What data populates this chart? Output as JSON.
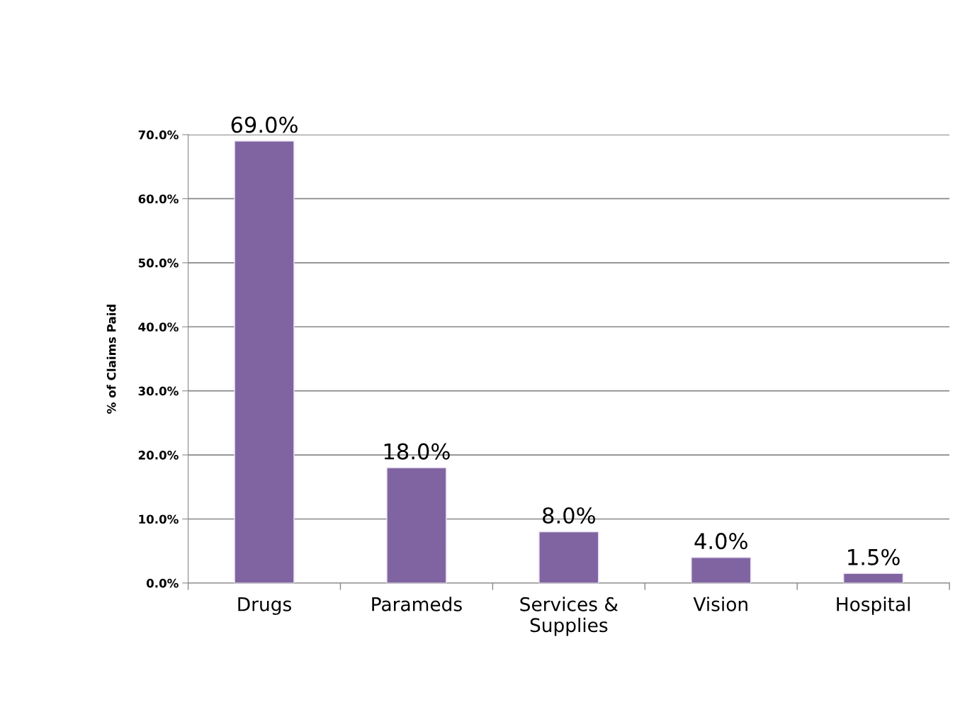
{
  "chart_data": {
    "type": "bar",
    "ylabel": "% of Claims Paid",
    "categories": [
      "Drugs",
      "Parameds",
      "Services &\nSupplies",
      "Vision",
      "Hospital"
    ],
    "values": [
      69.0,
      18.0,
      8.0,
      4.0,
      1.5
    ],
    "value_labels": [
      "69.0%",
      "18.0%",
      "8.0%",
      "4.0%",
      "1.5%"
    ],
    "color": "#8064a2",
    "ylim": [
      0,
      70
    ],
    "yticks": [
      {
        "value": 0,
        "label": "0.0%"
      },
      {
        "value": 10,
        "label": "10.0%"
      },
      {
        "value": 20,
        "label": "20.0%"
      },
      {
        "value": 30,
        "label": "30.0%"
      },
      {
        "value": 40,
        "label": "40.0%"
      },
      {
        "value": 50,
        "label": "50.0%"
      },
      {
        "value": 60,
        "label": "60.0%"
      },
      {
        "value": 70,
        "label": "70.0%"
      }
    ],
    "grid": "y",
    "legend": false
  }
}
